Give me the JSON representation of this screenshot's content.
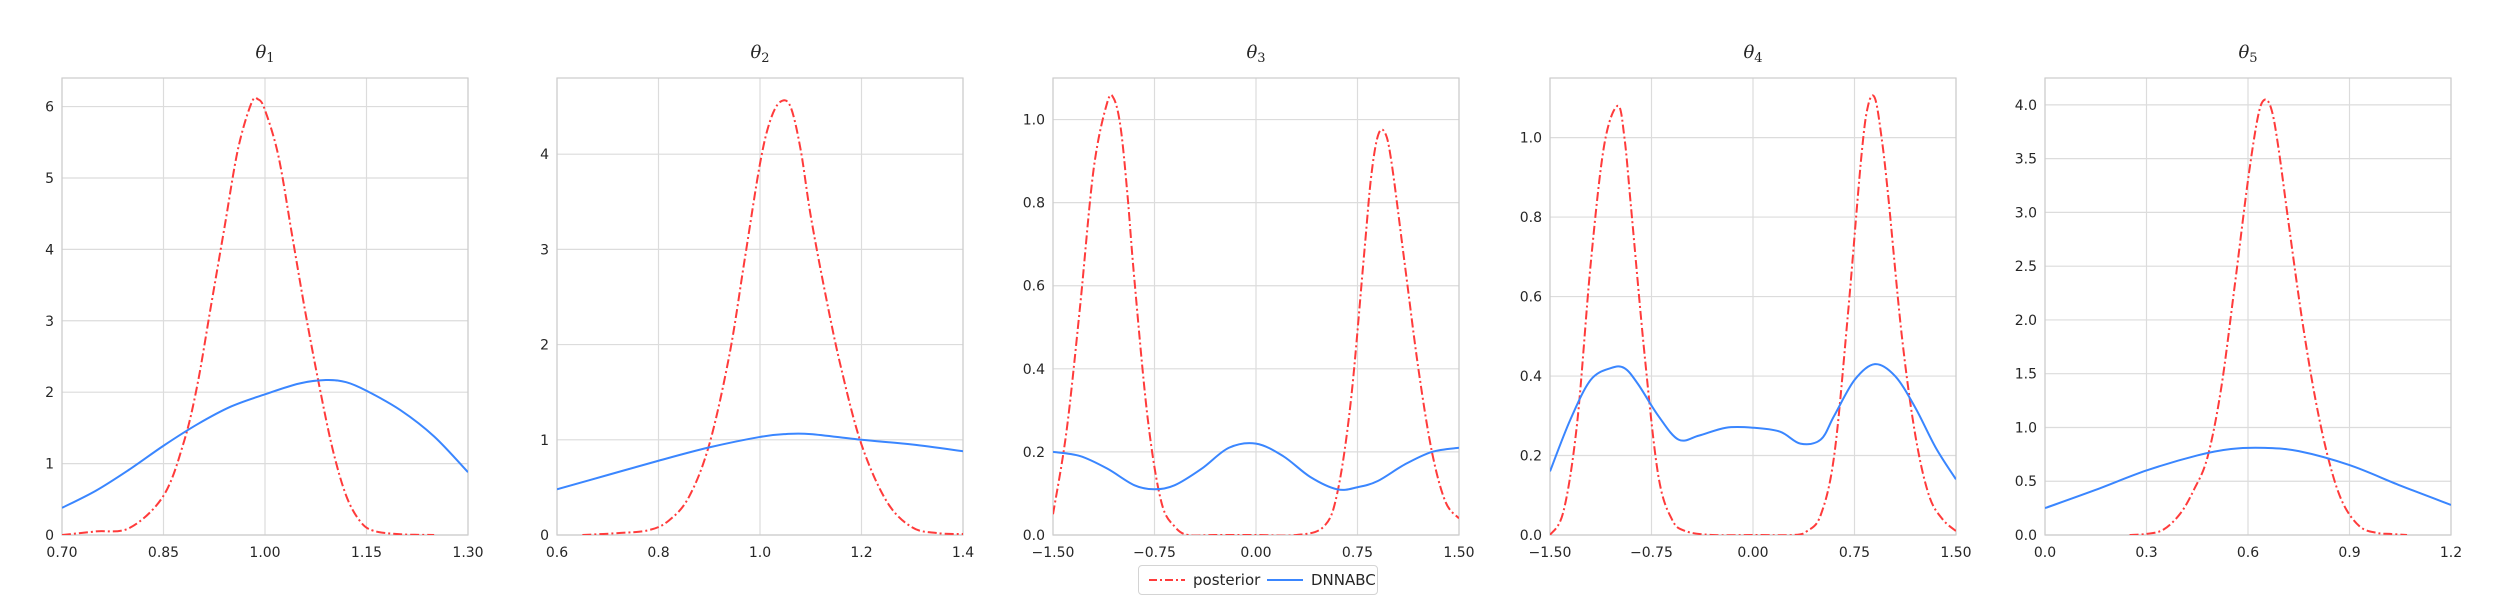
{
  "legend": {
    "items": [
      {
        "label": "posterior",
        "color": "#ff3b3b",
        "style": "dash-dot"
      },
      {
        "label": "DNNABC",
        "color": "#3a86ff",
        "style": "solid"
      }
    ]
  },
  "chart_data": [
    {
      "type": "line",
      "title": "θ1",
      "title_base": "θ",
      "title_sub": "1",
      "xlim": [
        0.7,
        1.3
      ],
      "ylim": [
        0,
        6.4
      ],
      "xticks": [
        "0.70",
        "0.85",
        "1.00",
        "1.15",
        "1.30"
      ],
      "xtick_values": [
        0.7,
        0.85,
        1.0,
        1.15,
        1.3
      ],
      "yticks": [
        "0",
        "1",
        "2",
        "3",
        "4",
        "5",
        "6"
      ],
      "ytick_values": [
        0,
        1,
        2,
        3,
        4,
        5,
        6
      ],
      "grid": true,
      "series": [
        {
          "name": "posterior",
          "x": [
            0.7,
            0.75,
            0.8,
            0.85,
            0.88,
            0.9,
            0.92,
            0.94,
            0.96,
            0.98,
            0.99,
            1.0,
            1.02,
            1.04,
            1.06,
            1.08,
            1.1,
            1.12,
            1.14,
            1.16,
            1.2,
            1.25
          ],
          "y": [
            0.0,
            0.05,
            0.1,
            0.55,
            1.3,
            2.1,
            3.2,
            4.3,
            5.4,
            6.05,
            6.1,
            5.95,
            5.3,
            4.2,
            3.1,
            2.1,
            1.2,
            0.55,
            0.2,
            0.06,
            0.01,
            0.0
          ]
        },
        {
          "name": "DNNABC",
          "x": [
            0.7,
            0.75,
            0.8,
            0.85,
            0.9,
            0.95,
            1.0,
            1.05,
            1.09,
            1.12,
            1.15,
            1.2,
            1.25,
            1.3
          ],
          "y": [
            0.38,
            0.62,
            0.92,
            1.25,
            1.55,
            1.8,
            1.97,
            2.12,
            2.17,
            2.14,
            2.02,
            1.75,
            1.38,
            0.88
          ]
        }
      ]
    },
    {
      "type": "line",
      "title": "θ2",
      "title_base": "θ",
      "title_sub": "2",
      "xlim": [
        0.6,
        1.4
      ],
      "ylim": [
        0,
        4.8
      ],
      "xticks": [
        "0.6",
        "0.8",
        "1.0",
        "1.2",
        "1.4"
      ],
      "xtick_values": [
        0.6,
        0.8,
        1.0,
        1.2,
        1.4
      ],
      "yticks": [
        "0",
        "1",
        "2",
        "3",
        "4"
      ],
      "ytick_values": [
        0,
        1,
        2,
        3,
        4
      ],
      "grid": true,
      "series": [
        {
          "name": "posterior",
          "x": [
            0.65,
            0.72,
            0.78,
            0.82,
            0.86,
            0.9,
            0.94,
            0.97,
            1.0,
            1.02,
            1.04,
            1.06,
            1.08,
            1.1,
            1.13,
            1.16,
            1.2,
            1.25,
            1.3,
            1.35,
            1.4
          ],
          "y": [
            0.0,
            0.02,
            0.05,
            0.15,
            0.4,
            0.95,
            1.9,
            2.9,
            3.9,
            4.35,
            4.55,
            4.5,
            4.05,
            3.35,
            2.5,
            1.75,
            0.95,
            0.35,
            0.08,
            0.02,
            0.01
          ]
        },
        {
          "name": "DNNABC",
          "x": [
            0.6,
            0.7,
            0.8,
            0.9,
            1.0,
            1.05,
            1.1,
            1.2,
            1.3,
            1.4
          ],
          "y": [
            0.48,
            0.63,
            0.78,
            0.92,
            1.03,
            1.06,
            1.06,
            1.0,
            0.95,
            0.88
          ]
        }
      ]
    },
    {
      "type": "line",
      "title": "θ3",
      "title_base": "θ",
      "title_sub": "3",
      "xlim": [
        -1.5,
        1.5
      ],
      "ylim": [
        0,
        1.1
      ],
      "xticks": [
        "−1.50",
        "−0.75",
        "0.00",
        "0.75",
        "1.50"
      ],
      "xtick_values": [
        -1.5,
        -0.75,
        0.0,
        0.75,
        1.5
      ],
      "yticks": [
        "0.0",
        "0.2",
        "0.4",
        "0.6",
        "0.8",
        "1.0"
      ],
      "ytick_values": [
        0.0,
        0.2,
        0.4,
        0.6,
        0.8,
        1.0
      ],
      "grid": true,
      "series": [
        {
          "name": "posterior",
          "x": [
            -1.5,
            -1.4,
            -1.3,
            -1.2,
            -1.1,
            -1.05,
            -1.0,
            -0.95,
            -0.9,
            -0.8,
            -0.7,
            -0.6,
            -0.5,
            -0.3,
            0.0,
            0.3,
            0.5,
            0.6,
            0.7,
            0.8,
            0.85,
            0.9,
            0.95,
            1.0,
            1.1,
            1.2,
            1.3,
            1.4,
            1.5
          ],
          "y": [
            0.05,
            0.25,
            0.55,
            0.88,
            1.04,
            1.05,
            0.98,
            0.82,
            0.62,
            0.28,
            0.08,
            0.02,
            0.0,
            0.0,
            0.0,
            0.0,
            0.02,
            0.1,
            0.32,
            0.68,
            0.86,
            0.96,
            0.97,
            0.9,
            0.65,
            0.4,
            0.2,
            0.08,
            0.04
          ]
        },
        {
          "name": "DNNABC",
          "x": [
            -1.5,
            -1.3,
            -1.1,
            -0.9,
            -0.75,
            -0.6,
            -0.4,
            -0.2,
            0.0,
            0.2,
            0.4,
            0.6,
            0.75,
            0.9,
            1.1,
            1.3,
            1.5
          ],
          "y": [
            0.2,
            0.19,
            0.16,
            0.12,
            0.11,
            0.12,
            0.16,
            0.21,
            0.22,
            0.19,
            0.14,
            0.11,
            0.115,
            0.13,
            0.17,
            0.2,
            0.21
          ]
        }
      ]
    },
    {
      "type": "line",
      "title": "θ4",
      "title_base": "θ",
      "title_sub": "4",
      "xlim": [
        -1.5,
        1.5
      ],
      "ylim": [
        0,
        1.15
      ],
      "xticks": [
        "−1.50",
        "−0.75",
        "0.00",
        "0.75",
        "1.50"
      ],
      "xtick_values": [
        -1.5,
        -0.75,
        0.0,
        0.75,
        1.5
      ],
      "yticks": [
        "0.0",
        "0.2",
        "0.4",
        "0.6",
        "0.8",
        "1.0"
      ],
      "ytick_values": [
        0.0,
        0.2,
        0.4,
        0.6,
        0.8,
        1.0
      ],
      "grid": true,
      "series": [
        {
          "name": "posterior",
          "x": [
            -1.5,
            -1.4,
            -1.3,
            -1.2,
            -1.1,
            -1.0,
            -0.95,
            -0.9,
            -0.8,
            -0.7,
            -0.6,
            -0.5,
            -0.3,
            0.0,
            0.3,
            0.4,
            0.5,
            0.6,
            0.7,
            0.8,
            0.85,
            0.9,
            0.95,
            1.0,
            1.1,
            1.2,
            1.3,
            1.4,
            1.5
          ],
          "y": [
            0.0,
            0.06,
            0.28,
            0.68,
            0.98,
            1.08,
            1.0,
            0.82,
            0.45,
            0.15,
            0.04,
            0.01,
            0.0,
            0.0,
            0.0,
            0.01,
            0.05,
            0.2,
            0.55,
            0.95,
            1.08,
            1.1,
            1.0,
            0.85,
            0.5,
            0.25,
            0.1,
            0.04,
            0.01
          ]
        },
        {
          "name": "DNNABC",
          "x": [
            -1.5,
            -1.35,
            -1.2,
            -1.05,
            -0.95,
            -0.85,
            -0.7,
            -0.55,
            -0.4,
            -0.2,
            0.0,
            0.2,
            0.35,
            0.5,
            0.6,
            0.75,
            0.9,
            1.05,
            1.2,
            1.35,
            1.5
          ],
          "y": [
            0.16,
            0.29,
            0.39,
            0.42,
            0.42,
            0.38,
            0.3,
            0.24,
            0.25,
            0.27,
            0.27,
            0.26,
            0.23,
            0.24,
            0.3,
            0.39,
            0.43,
            0.4,
            0.32,
            0.22,
            0.14
          ]
        }
      ]
    },
    {
      "type": "line",
      "title": "θ5",
      "title_base": "θ",
      "title_sub": "5",
      "xlim": [
        0.0,
        1.2
      ],
      "ylim": [
        0,
        4.25
      ],
      "xticks": [
        "0.0",
        "0.3",
        "0.6",
        "0.9",
        "1.2"
      ],
      "xtick_values": [
        0.0,
        0.3,
        0.6,
        0.9,
        1.2
      ],
      "yticks": [
        "0.0",
        "0.5",
        "1.0",
        "1.5",
        "2.0",
        "2.5",
        "3.0",
        "3.5",
        "4.0"
      ],
      "ytick_values": [
        0.0,
        0.5,
        1.0,
        1.5,
        2.0,
        2.5,
        3.0,
        3.5,
        4.0
      ],
      "grid": true,
      "series": [
        {
          "name": "posterior",
          "x": [
            0.25,
            0.3,
            0.35,
            0.4,
            0.44,
            0.48,
            0.52,
            0.56,
            0.6,
            0.63,
            0.65,
            0.67,
            0.69,
            0.72,
            0.76,
            0.8,
            0.84,
            0.88,
            0.93,
            0.98,
            1.02,
            1.07
          ],
          "y": [
            0.0,
            0.01,
            0.05,
            0.2,
            0.42,
            0.72,
            1.35,
            2.3,
            3.3,
            3.9,
            4.05,
            3.95,
            3.6,
            2.9,
            2.0,
            1.25,
            0.68,
            0.3,
            0.08,
            0.02,
            0.01,
            0.0
          ]
        },
        {
          "name": "DNNABC",
          "x": [
            0.0,
            0.15,
            0.3,
            0.45,
            0.55,
            0.65,
            0.75,
            0.9,
            1.05,
            1.2
          ],
          "y": [
            0.25,
            0.42,
            0.6,
            0.74,
            0.8,
            0.81,
            0.78,
            0.65,
            0.46,
            0.28
          ]
        }
      ]
    }
  ]
}
